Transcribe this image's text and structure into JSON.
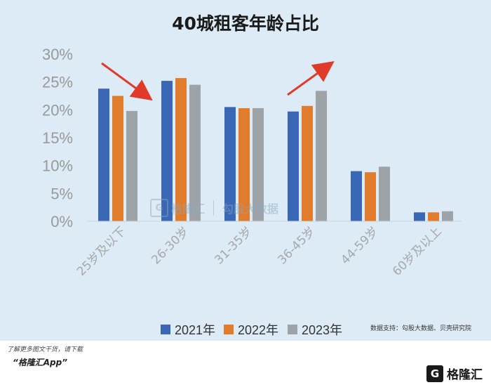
{
  "chart_data": {
    "type": "bar",
    "title": "40城租客年龄占比",
    "categories": [
      "25岁及以下",
      "26-30岁",
      "31-35岁",
      "36-45岁",
      "44-59岁",
      "60岁及以上"
    ],
    "series": [
      {
        "name": "2021年",
        "color": "#3a68b4",
        "values": [
          23.8,
          25.2,
          20.5,
          19.7,
          9.0,
          1.6
        ]
      },
      {
        "name": "2022年",
        "color": "#e07c2c",
        "values": [
          22.5,
          25.7,
          20.3,
          20.7,
          8.8,
          1.6
        ]
      },
      {
        "name": "2023年",
        "color": "#9ea3a8",
        "values": [
          19.8,
          24.5,
          20.3,
          23.4,
          9.8,
          1.8
        ]
      }
    ],
    "yticks": [
      "0%",
      "5%",
      "10%",
      "15%",
      "20%",
      "25%",
      "30%"
    ],
    "ylim": [
      0,
      30
    ],
    "grid": false,
    "legend_position": "bottom"
  },
  "source": "数据支持：勾股大数据、贝壳研究院",
  "watermark": {
    "icon": "G",
    "brand": "格隆汇",
    "sub": "勾股大数据"
  },
  "footer": {
    "promo": "了解更多图文干货，请下载",
    "app": "“格隆汇App”",
    "logo_icon": "G",
    "logo_text": "格隆汇"
  }
}
